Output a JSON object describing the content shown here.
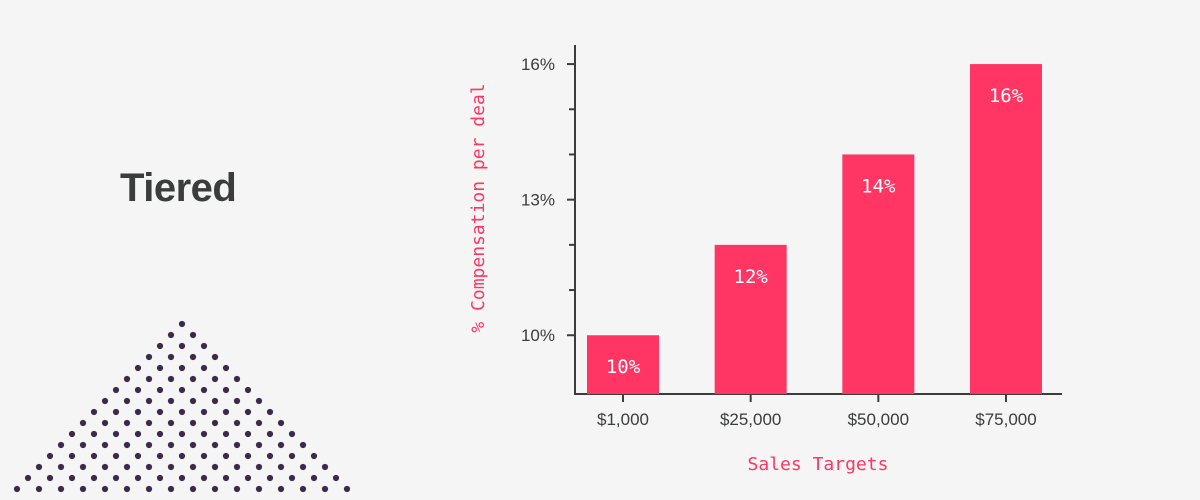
{
  "page": {
    "title": "Tiered"
  },
  "colors": {
    "bar": "#ff3563",
    "axis": "#3a3d3c",
    "dots": "#3b2a4a",
    "background": "#f4f5f4"
  },
  "chart_data": {
    "type": "bar",
    "categories": [
      "$1,000",
      "$25,000",
      "$50,000",
      "$75,000"
    ],
    "values": [
      10,
      12,
      14,
      16
    ],
    "data_labels": [
      "10%",
      "12%",
      "14%",
      "16%"
    ],
    "xlabel": "Sales Targets",
    "ylabel": "% Compensation per deal",
    "ylim": [
      8.7,
      16.4
    ],
    "yticks": [
      10,
      13,
      16
    ],
    "ytick_labels": [
      "10%",
      "13%",
      "16%"
    ],
    "minor_yticks": [
      11,
      12,
      14,
      15
    ],
    "grid": false,
    "legend": "none"
  }
}
